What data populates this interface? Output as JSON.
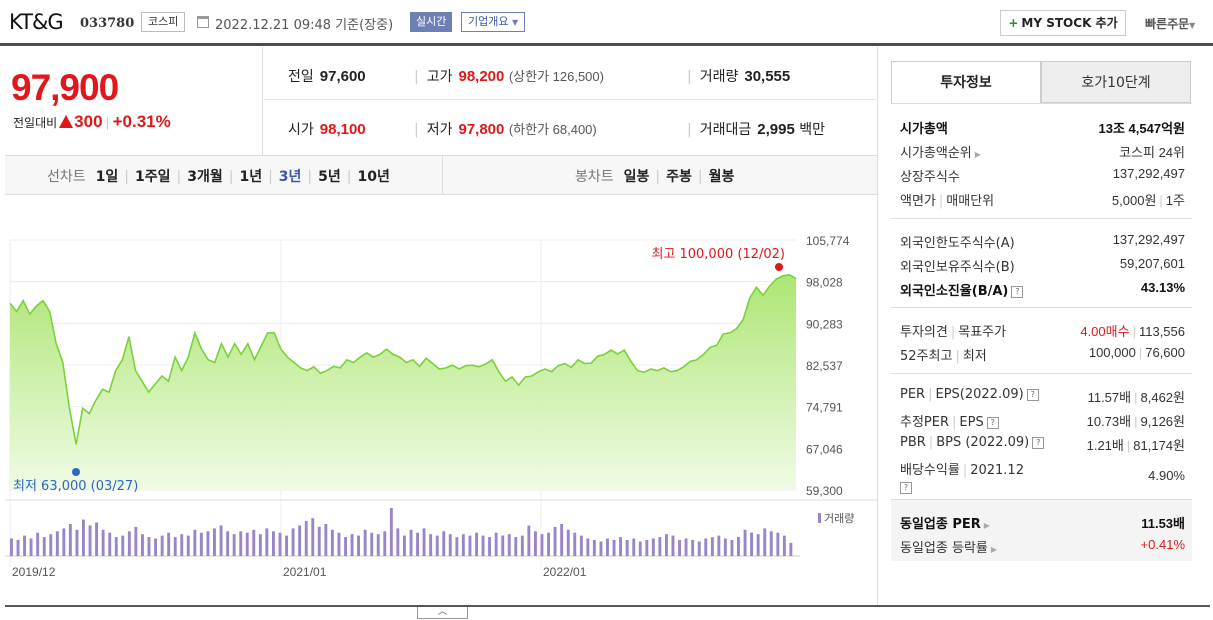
{
  "header": {
    "company_name": "KT&G",
    "stock_code": "033780",
    "market": "코스피",
    "datetime": "2022.12.21 09:48",
    "basis": "기준(장중)",
    "realtime": "실시간",
    "company_overview": "기업개요",
    "mystock_button": "MY STOCK 추가",
    "quick_order": "빠른주문"
  },
  "price": {
    "current": "97,900",
    "change_label": "전일대비",
    "change": "300",
    "change_pct": "+0.31%"
  },
  "stats": {
    "prev_close_label": "전일",
    "prev_close": "97,600",
    "high_label": "고가",
    "high": "98,200",
    "upper_limit": "(상한가 126,500)",
    "volume_label": "거래량",
    "volume": "30,555",
    "open_label": "시가",
    "open": "98,100",
    "low_label": "저가",
    "low": "97,800",
    "lower_limit": "(하한가 68,400)",
    "value_label": "거래대금",
    "value": "2,995",
    "value_unit": "백만"
  },
  "chart_tabs": {
    "line_label": "선차트",
    "periods": [
      "1일",
      "1주일",
      "3개월",
      "1년",
      "3년",
      "5년",
      "10년"
    ],
    "active_period": "3년",
    "candle_label": "봉차트",
    "candles": [
      "일봉",
      "주봉",
      "월봉"
    ]
  },
  "chart_data": {
    "type": "area",
    "y_ticks": [
      "105,774",
      "98,028",
      "90,283",
      "82,537",
      "74,791",
      "67,046",
      "59,300"
    ],
    "ylim": [
      59300,
      105774
    ],
    "x_labels": [
      "2019/12",
      "2021/01",
      "2022/01"
    ],
    "high_annotation": "최고 100,000 (12/02)",
    "low_annotation": "최저 63,000 (03/27)",
    "volume_legend": "거래량",
    "series": [
      {
        "name": "",
        "values": [
          94000,
          92500,
          94500,
          92000,
          93500,
          94500,
          92500,
          86500,
          83000,
          74500,
          67800,
          74500,
          73500,
          76000,
          78000,
          77500,
          81500,
          83500,
          87800,
          81500,
          79500,
          77500,
          79000,
          80500,
          79500,
          84000,
          81500,
          84000,
          88500,
          85500,
          83500,
          83000,
          86500,
          84000,
          86500,
          84500,
          86500,
          83500,
          86000,
          88500,
          88500,
          85500,
          84000,
          83000,
          82000,
          81500,
          82200,
          81000,
          81500,
          82300,
          82000,
          83500,
          83000,
          84000,
          84800,
          84000,
          84500,
          85500,
          84500,
          84000,
          83000,
          83500,
          82300,
          83800,
          82800,
          81800,
          82000,
          82500,
          81800,
          82400,
          82500,
          82200,
          82700,
          83500,
          81300,
          79500,
          80300,
          78800,
          80300,
          80500,
          81300,
          81800,
          81300,
          82400,
          82800,
          82100,
          83500,
          82800,
          82900,
          84200,
          84500,
          85300,
          84600,
          85300,
          83200,
          81500,
          81200,
          81800,
          81500,
          82000,
          81300,
          81500,
          82200,
          83200,
          83500,
          84500,
          85800,
          86200,
          88300,
          88500,
          89300,
          91000,
          95000,
          97000,
          95500,
          97200,
          98500,
          99100,
          99300,
          98600
        ]
      }
    ],
    "volume_values": [
      12,
      11,
      14,
      12,
      16,
      13,
      15,
      17,
      19,
      22,
      18,
      25,
      21,
      23,
      18,
      16,
      13,
      14,
      17,
      20,
      15,
      13,
      12,
      14,
      16,
      13,
      15,
      14,
      18,
      16,
      17,
      19,
      21,
      17,
      15,
      17,
      16,
      18,
      15,
      19,
      17,
      16,
      14,
      19,
      21,
      24,
      26,
      20,
      22,
      18,
      16,
      13,
      15,
      14,
      18,
      16,
      15,
      17,
      33,
      19,
      14,
      18,
      16,
      19,
      15,
      14,
      17,
      15,
      13,
      15,
      14,
      16,
      14,
      13,
      16,
      14,
      15,
      13,
      14,
      21,
      17,
      15,
      16,
      20,
      22,
      18,
      16,
      14,
      12,
      11,
      10,
      12,
      11,
      13,
      11,
      12,
      10,
      11,
      12,
      13,
      15,
      14,
      11,
      12,
      11,
      10,
      12,
      13,
      14,
      12,
      11,
      13,
      18,
      16,
      15,
      19,
      17,
      16,
      14,
      9
    ]
  },
  "right_panel": {
    "tab_invest": "투자정보",
    "tab_order": "호가10단계",
    "market_cap_label": "시가총액",
    "market_cap": "13조 4,547억원",
    "cap_rank_label": "시가총액순위",
    "cap_rank": "코스피 24위",
    "shares_label": "상장주식수",
    "shares": "137,292,497",
    "par_label": "액면가",
    "trade_unit_label": "매매단위",
    "par": "5,000원",
    "trade_unit": "1주",
    "foreign_limit_label": "외국인한도주식수(A)",
    "foreign_limit": "137,292,497",
    "foreign_hold_label": "외국인보유주식수(B)",
    "foreign_hold": "59,207,601",
    "foreign_ratio_label": "외국인소진율(B/A)",
    "foreign_ratio": "43.13%",
    "opinion_label": "투자의견",
    "target_label": "목표주가",
    "opinion": "4.00매수",
    "target": "113,556",
    "w52_high_label": "52주최고",
    "w52_low_label": "최저",
    "w52_high": "100,000",
    "w52_low": "76,600",
    "per_label": "PER",
    "eps_label": "EPS(2022.09)",
    "per": "11.57배",
    "eps": "8,462원",
    "est_per_label": "추정PER",
    "est_eps_label": "EPS",
    "est_per": "10.73배",
    "est_eps": "9,126원",
    "pbr_label": "PBR",
    "bps_label": "BPS (2022.09)",
    "pbr": "1.21배",
    "bps": "81,174원",
    "div_label": "배당수익률",
    "div_date": "2021.12",
    "div": "4.90%",
    "ind_per_label": "동일업종 PER",
    "ind_per": "11.53배",
    "ind_rate_label": "동일업종 등락률",
    "ind_rate": "+0.41%",
    "help_glyph": "?"
  }
}
